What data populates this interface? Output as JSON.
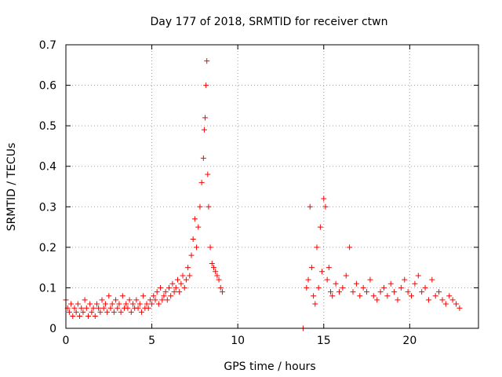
{
  "chart_data": {
    "type": "scatter",
    "title": "Day 177 of 2018, SRMTID for receiver ctwn",
    "xlabel": "GPS time / hours",
    "ylabel": "SRMTID / TECUs",
    "xlim": [
      0,
      24
    ],
    "ylim": [
      0,
      0.7
    ],
    "x_ticks": [
      0,
      5,
      10,
      15,
      20
    ],
    "x_tick_labels": [
      "0",
      "5",
      "10",
      "15",
      "20"
    ],
    "y_ticks": [
      0,
      0.1,
      0.2,
      0.3,
      0.4,
      0.5,
      0.6,
      0.7
    ],
    "y_tick_labels": [
      "0",
      "0.1",
      "0.2",
      "0.3",
      "0.4",
      "0.5",
      "0.6",
      "0.7"
    ],
    "grid": true,
    "marker": "+",
    "color": "#ff0000",
    "series": [
      {
        "name": "SRMTID",
        "x": [
          0.0,
          0.1,
          0.2,
          0.3,
          0.4,
          0.5,
          0.6,
          0.7,
          0.8,
          0.9,
          1.0,
          1.1,
          1.2,
          1.3,
          1.4,
          1.5,
          1.6,
          1.7,
          1.8,
          1.9,
          2.0,
          2.1,
          2.2,
          2.3,
          2.4,
          2.5,
          2.6,
          2.7,
          2.8,
          2.9,
          3.0,
          3.1,
          3.2,
          3.3,
          3.4,
          3.5,
          3.6,
          3.7,
          3.8,
          3.9,
          4.0,
          4.1,
          4.2,
          4.3,
          4.4,
          4.5,
          4.6,
          4.7,
          4.8,
          4.9,
          5.0,
          5.1,
          5.2,
          5.3,
          5.4,
          5.5,
          5.6,
          5.7,
          5.8,
          5.9,
          6.0,
          6.1,
          6.2,
          6.3,
          6.4,
          6.5,
          6.6,
          6.7,
          6.8,
          6.9,
          7.0,
          7.1,
          7.2,
          7.3,
          7.4,
          7.5,
          7.6,
          7.7,
          7.8,
          7.9,
          8.0,
          8.05,
          8.1,
          8.15,
          8.2,
          8.25,
          8.3,
          8.4,
          8.5,
          8.6,
          8.7,
          8.8,
          8.9,
          9.0,
          9.1,
          13.8,
          14.0,
          14.1,
          14.2,
          14.3,
          14.4,
          14.5,
          14.6,
          14.7,
          14.8,
          14.9,
          15.0,
          15.1,
          15.2,
          15.3,
          15.4,
          15.5,
          15.7,
          15.9,
          16.1,
          16.3,
          16.5,
          16.7,
          16.9,
          17.1,
          17.3,
          17.5,
          17.7,
          17.9,
          18.1,
          18.3,
          18.5,
          18.7,
          18.9,
          19.1,
          19.3,
          19.5,
          19.7,
          19.9,
          20.1,
          20.3,
          20.5,
          20.7,
          20.9,
          21.1,
          21.3,
          21.5,
          21.7,
          21.9,
          22.1,
          22.3,
          22.5,
          22.7,
          22.9
        ],
        "y": [
          0.07,
          0.05,
          0.04,
          0.06,
          0.03,
          0.05,
          0.04,
          0.06,
          0.03,
          0.05,
          0.04,
          0.07,
          0.05,
          0.03,
          0.06,
          0.04,
          0.05,
          0.03,
          0.06,
          0.05,
          0.04,
          0.07,
          0.05,
          0.06,
          0.04,
          0.08,
          0.05,
          0.06,
          0.04,
          0.07,
          0.05,
          0.06,
          0.04,
          0.08,
          0.05,
          0.06,
          0.05,
          0.07,
          0.04,
          0.06,
          0.05,
          0.07,
          0.05,
          0.06,
          0.04,
          0.08,
          0.05,
          0.06,
          0.05,
          0.07,
          0.06,
          0.08,
          0.07,
          0.09,
          0.06,
          0.1,
          0.07,
          0.08,
          0.09,
          0.07,
          0.1,
          0.08,
          0.11,
          0.09,
          0.1,
          0.12,
          0.09,
          0.11,
          0.13,
          0.1,
          0.12,
          0.15,
          0.13,
          0.18,
          0.22,
          0.27,
          0.2,
          0.25,
          0.3,
          0.36,
          0.42,
          0.49,
          0.52,
          0.6,
          0.66,
          0.38,
          0.3,
          0.2,
          0.16,
          0.15,
          0.14,
          0.13,
          0.12,
          0.1,
          0.09,
          0.0,
          0.1,
          0.12,
          0.3,
          0.15,
          0.08,
          0.06,
          0.2,
          0.1,
          0.25,
          0.14,
          0.32,
          0.3,
          0.12,
          0.15,
          0.09,
          0.08,
          0.11,
          0.09,
          0.1,
          0.13,
          0.2,
          0.09,
          0.11,
          0.08,
          0.1,
          0.09,
          0.12,
          0.08,
          0.07,
          0.09,
          0.1,
          0.08,
          0.11,
          0.09,
          0.07,
          0.1,
          0.12,
          0.09,
          0.08,
          0.11,
          0.13,
          0.09,
          0.1,
          0.07,
          0.12,
          0.08,
          0.09,
          0.07,
          0.06,
          0.08,
          0.07,
          0.06,
          0.05
        ]
      }
    ]
  }
}
